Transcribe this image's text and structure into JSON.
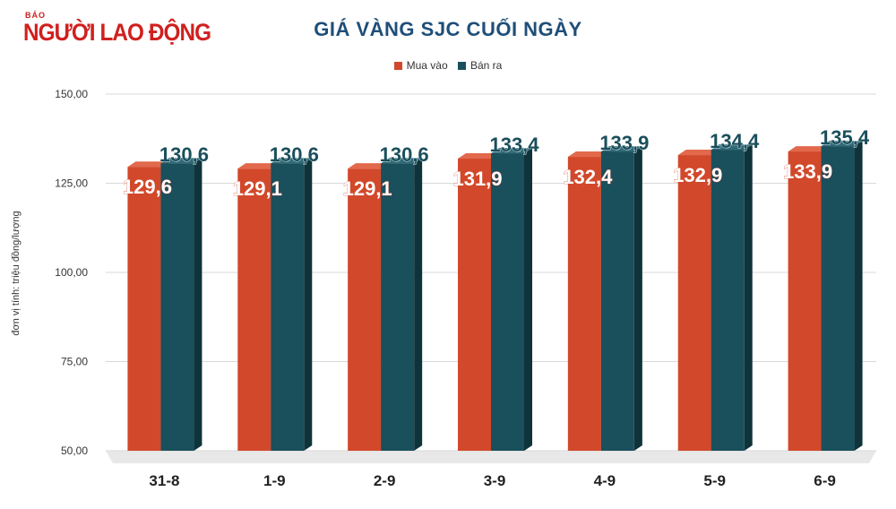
{
  "logo": {
    "small": "BÁO",
    "main": "NGƯỜI LAO ĐỘNG"
  },
  "chart_data": {
    "type": "bar",
    "title": "GIÁ VÀNG SJC CUỐI NGÀY",
    "ylabel": "đơn vị tính: triệu đồng/lượng",
    "xlabel": "",
    "categories": [
      "31-8",
      "1-9",
      "2-9",
      "3-9",
      "4-9",
      "5-9",
      "6-9"
    ],
    "series": [
      {
        "name": "Mua vào",
        "color": "#d2482a",
        "values": [
          129.6,
          129.1,
          129.1,
          131.9,
          132.4,
          132.9,
          133.9
        ],
        "labels": [
          "129,6",
          "129,1",
          "129,1",
          "131,9",
          "132,4",
          "132,9",
          "133,9"
        ]
      },
      {
        "name": "Bán ra",
        "color": "#1a4f5c",
        "values": [
          130.6,
          130.6,
          130.6,
          133.4,
          133.9,
          134.4,
          135.4
        ],
        "labels": [
          "130,6",
          "130,6",
          "130,6",
          "133,4",
          "133,9",
          "134,4",
          "135,4"
        ]
      }
    ],
    "ylim": [
      50,
      150
    ],
    "yticks": [
      50,
      75,
      100,
      125,
      150
    ],
    "ytick_labels": [
      "50,00",
      "75,00",
      "100,00",
      "125,00",
      "150,00"
    ],
    "grid": true,
    "legend": "top-center"
  }
}
